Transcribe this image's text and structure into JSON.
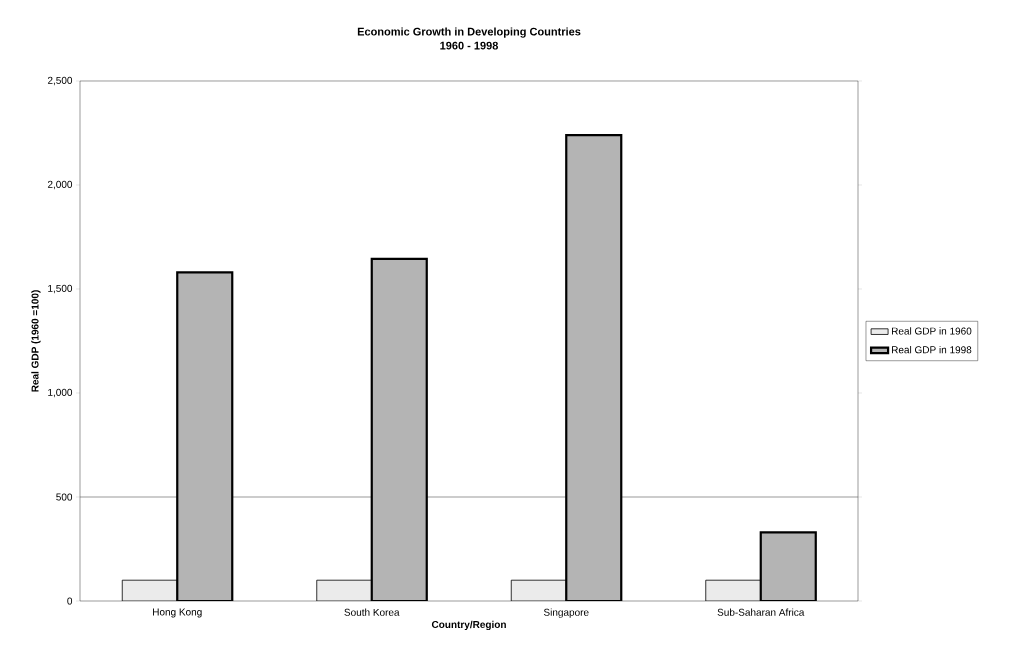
{
  "chart_data": {
    "type": "bar",
    "title": "Economic Growth in Developing Countries",
    "subtitle": "1960 - 1998",
    "xlabel": "Country/Region",
    "ylabel": "Real GDP (1960 =100)",
    "categories": [
      "Hong Kong",
      "South Korea",
      "Singapore",
      "Sub-Saharan Africa"
    ],
    "series": [
      {
        "name": "Real GDP in 1960",
        "color": "#ebebeb",
        "values": [
          100,
          100,
          100,
          100
        ]
      },
      {
        "name": "Real GDP in 1998",
        "color": "#b4b4b4",
        "values": [
          1580,
          1645,
          2240,
          330
        ]
      }
    ],
    "ylim": [
      0,
      2500
    ],
    "yticks": [
      0,
      500,
      {
        "value": 1000,
        "label": "1,000"
      },
      {
        "value": 1500,
        "label": "1,500"
      },
      {
        "value": 2000,
        "label": "2,000"
      },
      {
        "value": 2500,
        "label": "2,500"
      }
    ],
    "ref_lines": [
      {
        "axis": "y",
        "value": 500,
        "color": "#555555"
      }
    ],
    "legend": "right"
  }
}
